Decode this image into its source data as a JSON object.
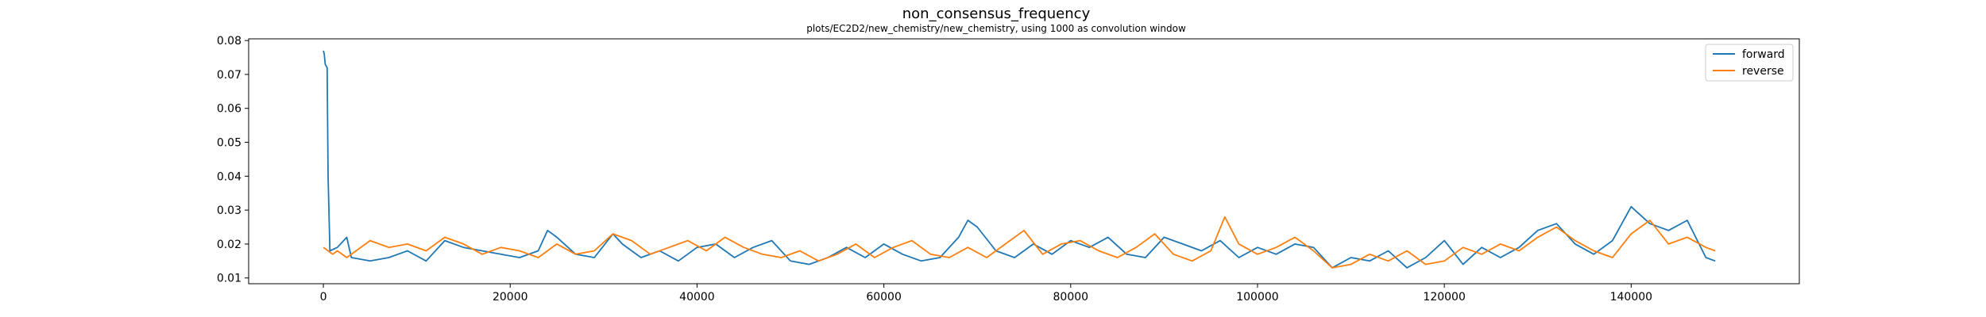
{
  "chart_data": {
    "type": "line",
    "title": "non_consensus_frequency",
    "subtitle": "plots/EC2D2/new_chemistry/new_chemistry, using 1000 as convolution window",
    "xlabel": "",
    "ylabel": "",
    "xlim": [
      -8000,
      158000
    ],
    "ylim": [
      0.0083,
      0.0805
    ],
    "xticks": [
      0,
      20000,
      40000,
      60000,
      80000,
      100000,
      120000,
      140000
    ],
    "yticks": [
      0.01,
      0.02,
      0.03,
      0.04,
      0.05,
      0.06,
      0.07,
      0.08
    ],
    "grid": false,
    "legend_position": "top-right",
    "series": [
      {
        "name": "forward",
        "color": "#1f77b4",
        "x": [
          0,
          100,
          200,
          400,
          500,
          700,
          1500,
          2500,
          3000,
          5000,
          7000,
          9000,
          11000,
          13000,
          15000,
          17000,
          19000,
          21000,
          23000,
          24000,
          25000,
          27000,
          29000,
          31000,
          32000,
          34000,
          36000,
          38000,
          40000,
          42000,
          44000,
          46000,
          48000,
          50000,
          52000,
          54000,
          56000,
          58000,
          60000,
          62000,
          64000,
          66000,
          68000,
          69000,
          70000,
          72000,
          74000,
          76000,
          78000,
          80000,
          82000,
          84000,
          86000,
          88000,
          90000,
          92000,
          94000,
          96000,
          98000,
          100000,
          102000,
          104000,
          106000,
          108000,
          110000,
          112000,
          114000,
          116000,
          118000,
          120000,
          122000,
          124000,
          126000,
          128000,
          130000,
          132000,
          134000,
          136000,
          138000,
          140000,
          142000,
          144000,
          146000,
          148000,
          149000
        ],
        "y": [
          0.077,
          0.076,
          0.073,
          0.072,
          0.04,
          0.018,
          0.019,
          0.022,
          0.016,
          0.015,
          0.016,
          0.018,
          0.015,
          0.021,
          0.019,
          0.018,
          0.017,
          0.016,
          0.018,
          0.024,
          0.022,
          0.017,
          0.016,
          0.023,
          0.02,
          0.016,
          0.018,
          0.015,
          0.019,
          0.02,
          0.016,
          0.019,
          0.021,
          0.015,
          0.014,
          0.016,
          0.019,
          0.016,
          0.02,
          0.017,
          0.015,
          0.016,
          0.022,
          0.027,
          0.025,
          0.018,
          0.016,
          0.02,
          0.017,
          0.021,
          0.019,
          0.022,
          0.017,
          0.016,
          0.022,
          0.02,
          0.018,
          0.021,
          0.016,
          0.019,
          0.017,
          0.02,
          0.019,
          0.013,
          0.016,
          0.015,
          0.018,
          0.013,
          0.016,
          0.021,
          0.014,
          0.019,
          0.016,
          0.019,
          0.024,
          0.026,
          0.02,
          0.017,
          0.021,
          0.031,
          0.026,
          0.024,
          0.027,
          0.016,
          0.015
        ]
      },
      {
        "name": "reverse",
        "color": "#ff7f0e",
        "x": [
          0,
          500,
          1000,
          1500,
          2500,
          3500,
          5000,
          7000,
          9000,
          11000,
          13000,
          15000,
          17000,
          19000,
          21000,
          23000,
          25000,
          27000,
          29000,
          31000,
          33000,
          35000,
          37000,
          39000,
          41000,
          43000,
          45000,
          47000,
          49000,
          51000,
          53000,
          55000,
          57000,
          59000,
          61000,
          63000,
          65000,
          67000,
          69000,
          71000,
          73000,
          75000,
          77000,
          79000,
          81000,
          83000,
          85000,
          87000,
          89000,
          91000,
          93000,
          95000,
          96500,
          98000,
          100000,
          102000,
          104000,
          106000,
          108000,
          110000,
          112000,
          114000,
          116000,
          118000,
          120000,
          122000,
          124000,
          126000,
          128000,
          130000,
          132000,
          134000,
          136000,
          138000,
          140000,
          142000,
          144000,
          146000,
          148000,
          149000
        ],
        "y": [
          0.019,
          0.018,
          0.017,
          0.018,
          0.016,
          0.018,
          0.021,
          0.019,
          0.02,
          0.018,
          0.022,
          0.02,
          0.017,
          0.019,
          0.018,
          0.016,
          0.02,
          0.017,
          0.018,
          0.023,
          0.021,
          0.017,
          0.019,
          0.021,
          0.018,
          0.022,
          0.019,
          0.017,
          0.016,
          0.018,
          0.015,
          0.017,
          0.02,
          0.016,
          0.019,
          0.021,
          0.017,
          0.016,
          0.019,
          0.016,
          0.02,
          0.024,
          0.017,
          0.02,
          0.021,
          0.018,
          0.016,
          0.019,
          0.023,
          0.017,
          0.015,
          0.018,
          0.028,
          0.02,
          0.017,
          0.019,
          0.022,
          0.018,
          0.013,
          0.014,
          0.017,
          0.015,
          0.018,
          0.014,
          0.015,
          0.019,
          0.017,
          0.02,
          0.018,
          0.022,
          0.025,
          0.021,
          0.018,
          0.016,
          0.023,
          0.027,
          0.02,
          0.022,
          0.019,
          0.018
        ]
      }
    ]
  }
}
